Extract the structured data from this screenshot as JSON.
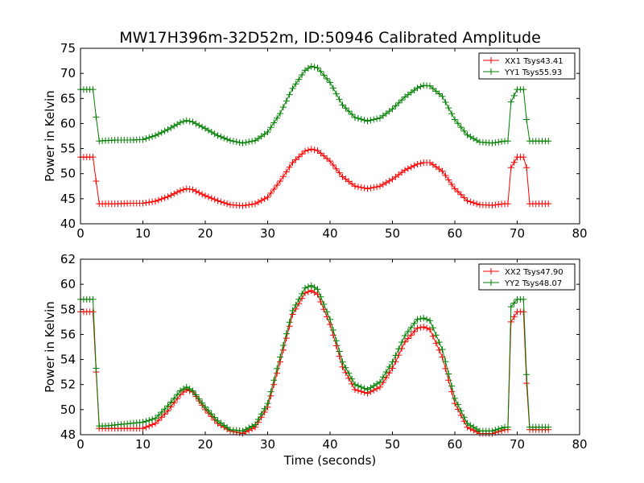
{
  "chart_data": [
    {
      "type": "line",
      "title": "MW17H396m-32D52m, ID:50946 Calibrated Amplitude",
      "xlabel": "",
      "ylabel": "Power in Kelvin",
      "xlim": [
        0,
        80
      ],
      "ylim": [
        40,
        75
      ],
      "xticks": [
        0,
        10,
        20,
        30,
        40,
        50,
        60,
        70,
        80
      ],
      "yticks": [
        40,
        45,
        50,
        55,
        60,
        65,
        70,
        75
      ],
      "grid": false,
      "legend_position": "top-right",
      "series": [
        {
          "name": "XX1 Tsys43.41",
          "color": "#ff0000",
          "x": [
            0,
            1,
            2,
            2.5,
            3,
            4,
            6,
            8,
            10,
            12,
            14,
            16,
            17,
            18,
            20,
            22,
            24,
            26,
            28,
            30,
            32,
            34,
            36,
            37,
            38,
            40,
            42,
            44,
            46,
            48,
            50,
            52,
            54,
            55,
            56,
            58,
            60,
            62,
            64,
            66,
            68,
            68.5,
            69,
            70,
            71,
            71.5,
            72,
            73,
            74,
            75
          ],
          "y": [
            53.3,
            53.3,
            53.3,
            48.5,
            44.0,
            44.0,
            44.0,
            44.1,
            44.1,
            44.5,
            45.4,
            46.6,
            47.0,
            46.8,
            45.6,
            44.6,
            43.8,
            43.6,
            44.0,
            45.3,
            48.5,
            52.2,
            54.5,
            54.9,
            54.6,
            52.5,
            49.4,
            47.5,
            47.0,
            47.5,
            48.9,
            50.7,
            51.9,
            52.2,
            52.2,
            50.5,
            47.0,
            44.6,
            43.8,
            43.7,
            44.0,
            44.0,
            51.2,
            53.3,
            53.3,
            51.2,
            44.0,
            44.0,
            44.0,
            44.0
          ]
        },
        {
          "name": "YY1 Tsys55.93",
          "color": "#008000",
          "x": [
            0,
            1,
            2,
            2.5,
            3,
            4,
            6,
            8,
            10,
            12,
            14,
            16,
            17,
            18,
            20,
            22,
            24,
            26,
            28,
            30,
            32,
            34,
            36,
            37,
            38,
            40,
            42,
            44,
            46,
            48,
            50,
            52,
            54,
            55,
            56,
            58,
            60,
            62,
            64,
            66,
            68,
            68.5,
            69,
            70,
            71,
            71.5,
            72,
            73,
            74,
            75
          ],
          "y": [
            66.8,
            66.8,
            66.8,
            61.3,
            56.5,
            56.6,
            56.7,
            56.7,
            56.8,
            57.6,
            58.8,
            60.2,
            60.6,
            60.3,
            59.0,
            57.6,
            56.6,
            56.1,
            56.6,
            58.3,
            62.0,
            67.0,
            70.6,
            71.4,
            71.1,
            68.2,
            63.7,
            61.2,
            60.5,
            61.1,
            62.9,
            65.3,
            67.1,
            67.6,
            67.5,
            65.4,
            60.8,
            57.7,
            56.3,
            56.1,
            56.5,
            56.5,
            64.3,
            66.8,
            66.8,
            60.8,
            56.5,
            56.5,
            56.5,
            56.5
          ]
        }
      ]
    },
    {
      "type": "line",
      "title": "",
      "xlabel": "Time (seconds)",
      "ylabel": "Power in Kelvin",
      "xlim": [
        0,
        80
      ],
      "ylim": [
        48,
        62
      ],
      "xticks": [
        0,
        10,
        20,
        30,
        40,
        50,
        60,
        70,
        80
      ],
      "yticks": [
        48,
        50,
        52,
        54,
        56,
        58,
        60,
        62
      ],
      "grid": false,
      "legend_position": "top-right",
      "series": [
        {
          "name": "XX2 Tsys47.90",
          "color": "#ff0000",
          "x": [
            0,
            1,
            2,
            2.5,
            3,
            4,
            6,
            8,
            10,
            12,
            14,
            16,
            17,
            18,
            20,
            22,
            24,
            26,
            28,
            30,
            32,
            34,
            36,
            37,
            38,
            40,
            42,
            44,
            46,
            48,
            50,
            52,
            54,
            55,
            56,
            58,
            60,
            62,
            64,
            66,
            68,
            68.5,
            69,
            70,
            71,
            71.5,
            72,
            73,
            74,
            75
          ],
          "y": [
            57.8,
            57.8,
            57.8,
            53.0,
            48.5,
            48.5,
            48.5,
            48.5,
            48.5,
            48.9,
            49.9,
            51.2,
            51.6,
            51.4,
            50.0,
            48.9,
            48.3,
            48.1,
            48.6,
            50.2,
            53.8,
            57.6,
            59.3,
            59.5,
            59.2,
            56.8,
            53.4,
            51.6,
            51.3,
            51.8,
            53.3,
            55.4,
            56.5,
            56.6,
            56.4,
            54.2,
            50.5,
            48.6,
            48.1,
            48.1,
            48.4,
            48.4,
            57.0,
            57.8,
            57.8,
            52.1,
            48.4,
            48.4,
            48.4,
            48.4
          ]
        },
        {
          "name": "YY2 Tsys48.07",
          "color": "#008000",
          "x": [
            0,
            1,
            2,
            2.5,
            3,
            4,
            6,
            8,
            10,
            12,
            14,
            16,
            17,
            18,
            20,
            22,
            24,
            26,
            28,
            30,
            32,
            34,
            36,
            37,
            38,
            40,
            42,
            44,
            46,
            48,
            50,
            52,
            54,
            55,
            56,
            58,
            60,
            62,
            64,
            66,
            68,
            68.5,
            69,
            70,
            71,
            71.5,
            72,
            73,
            74,
            75
          ],
          "y": [
            58.8,
            58.8,
            58.8,
            53.3,
            48.7,
            48.7,
            48.8,
            48.9,
            49.0,
            49.3,
            50.3,
            51.5,
            51.8,
            51.5,
            50.2,
            49.1,
            48.4,
            48.3,
            48.8,
            50.5,
            54.2,
            57.9,
            59.7,
            59.9,
            59.6,
            57.2,
            53.8,
            52.0,
            51.6,
            52.2,
            53.8,
            55.9,
            57.2,
            57.3,
            57.1,
            54.8,
            50.9,
            48.9,
            48.3,
            48.3,
            48.6,
            48.6,
            58.2,
            58.8,
            58.8,
            52.8,
            48.6,
            48.6,
            48.6,
            48.6
          ]
        }
      ]
    }
  ]
}
